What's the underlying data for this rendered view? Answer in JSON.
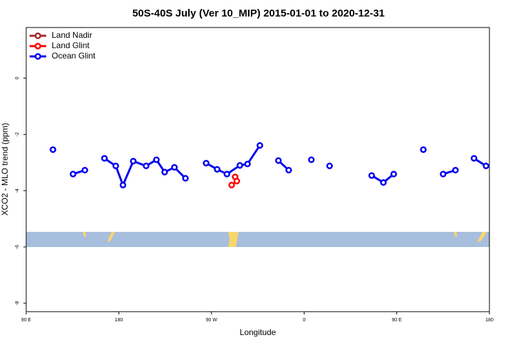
{
  "chart_data": {
    "type": "line",
    "title": "50S-40S July (Ver 10_MIP)   2015-01-01 to 2020-12-31",
    "x_label": "Longitude",
    "y_label": "XCO2 - MLO trend (ppm)",
    "xlim": [
      90,
      540
    ],
    "xticks": [
      {
        "value": 90,
        "label": "90 E"
      },
      180,
      {
        "value": 270,
        "label": "90 W"
      },
      {
        "value": 360,
        "label": "0"
      },
      {
        "value": 450,
        "label": "90 E"
      },
      {
        "value": 540,
        "label": "180"
      }
    ],
    "ylim": [
      -8.3,
      1.8
    ],
    "yticks": [
      0,
      -2,
      -4,
      -6,
      -8
    ],
    "legend": "top-left",
    "series": [
      {
        "name": "Land Nadir",
        "color": "#a52a2a",
        "x": [],
        "values": []
      },
      {
        "name": "Land Glint",
        "color": "#ff0000",
        "x": [
          293,
          294.6,
          289.6
        ],
        "values": [
          -3.51,
          -3.66,
          -3.8
        ]
      },
      {
        "name": "Ocean Glint",
        "color": "#0000ee",
        "x": [
          116,
          null,
          135.5,
          147,
          null,
          166,
          177,
          184,
          194,
          206.5,
          216.5,
          224.5,
          234,
          244.7,
          null,
          264.8,
          275.5,
          285,
          297.6,
          305,
          317,
          null,
          335,
          345,
          null,
          367,
          null,
          384.7,
          null,
          425.6,
          437,
          447,
          null,
          475.8,
          null,
          495,
          507,
          null,
          525,
          536.7
        ],
        "values": [
          -2.54,
          null,
          -3.41,
          -3.27,
          null,
          -2.85,
          -3.12,
          -3.8,
          -2.95,
          -3.12,
          -2.9,
          -3.34,
          -3.17,
          -3.56,
          null,
          -3.02,
          -3.24,
          -3.41,
          -3.1,
          -3.05,
          -2.39,
          null,
          -2.93,
          -3.27,
          null,
          -2.9,
          null,
          -3.12,
          null,
          -3.46,
          -3.71,
          -3.41,
          null,
          -2.54,
          null,
          -3.41,
          -3.27,
          null,
          -2.85,
          -3.12
        ]
      }
    ]
  }
}
